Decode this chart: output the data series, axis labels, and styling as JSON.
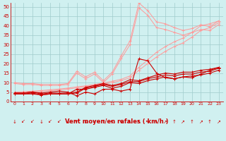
{
  "bg_color": "#d0f0f0",
  "grid_color": "#a0cccc",
  "line_color_dark": "#cc0000",
  "line_color_light": "#ff9999",
  "line_color_light2": "#ffaaaa",
  "xlabel": "Vent moyen/en rafales ( km/h )",
  "ylabel_ticks": [
    0,
    5,
    10,
    15,
    20,
    25,
    30,
    35,
    40,
    45,
    50
  ],
  "xlim": [
    -0.5,
    23.5
  ],
  "ylim": [
    0,
    52
  ],
  "x_ticks": [
    0,
    1,
    2,
    3,
    4,
    5,
    6,
    7,
    8,
    9,
    10,
    11,
    12,
    13,
    14,
    15,
    16,
    17,
    18,
    19,
    20,
    21,
    22,
    23
  ],
  "series_light": [
    [
      5.0,
      5.2,
      5.5,
      5.8,
      6.2,
      6.6,
      7.1,
      7.7,
      8.3,
      9.0,
      9.8,
      10.7,
      11.7,
      13.5,
      18.0,
      22.0,
      26.0,
      29.0,
      31.5,
      33.5,
      36.5,
      40.0,
      41.0,
      42.5
    ],
    [
      4.5,
      4.7,
      5.0,
      5.3,
      5.7,
      6.1,
      6.6,
      7.2,
      7.8,
      8.5,
      9.2,
      10.0,
      11.0,
      12.5,
      16.5,
      20.0,
      23.5,
      26.5,
      29.0,
      31.0,
      34.0,
      37.5,
      39.0,
      41.5
    ],
    [
      10.0,
      9.5,
      9.5,
      9.0,
      9.0,
      9.0,
      9.5,
      16.0,
      13.0,
      15.5,
      11.0,
      15.5,
      24.0,
      32.0,
      52.0,
      48.0,
      42.0,
      41.0,
      39.0,
      37.5,
      38.5,
      40.5,
      39.5,
      42.5
    ],
    [
      9.5,
      9.0,
      9.0,
      8.5,
      8.5,
      8.5,
      9.0,
      15.0,
      12.0,
      14.5,
      10.0,
      14.5,
      22.5,
      30.0,
      49.5,
      45.5,
      39.0,
      38.0,
      36.5,
      35.0,
      36.5,
      38.0,
      37.5,
      40.5
    ]
  ],
  "series_dark": [
    [
      4.5,
      4.5,
      5.0,
      4.0,
      4.5,
      4.5,
      4.5,
      5.0,
      7.5,
      8.5,
      9.5,
      8.5,
      9.5,
      11.5,
      11.0,
      12.5,
      14.0,
      15.0,
      14.5,
      15.5,
      15.5,
      16.5,
      17.0,
      18.0
    ],
    [
      4.0,
      4.0,
      4.5,
      3.5,
      4.0,
      4.0,
      4.0,
      4.5,
      7.0,
      8.0,
      9.0,
      8.0,
      9.0,
      10.5,
      10.5,
      12.0,
      13.0,
      14.0,
      13.5,
      14.5,
      14.5,
      15.5,
      16.0,
      17.5
    ],
    [
      4.0,
      4.0,
      4.0,
      3.5,
      4.0,
      4.0,
      4.0,
      6.5,
      6.5,
      7.5,
      8.5,
      7.0,
      8.0,
      10.0,
      9.5,
      11.0,
      12.0,
      13.0,
      12.0,
      13.0,
      13.5,
      14.0,
      15.0,
      16.5
    ],
    [
      4.5,
      4.5,
      5.0,
      4.5,
      5.0,
      5.5,
      5.0,
      3.0,
      5.0,
      4.0,
      6.5,
      6.5,
      5.5,
      6.5,
      22.5,
      21.5,
      15.0,
      12.5,
      12.0,
      13.0,
      12.5,
      14.5,
      16.5,
      18.0
    ]
  ],
  "wind_symbols": [
    "↓",
    "↙",
    "↙",
    "↓",
    "↙",
    "↙",
    "↓",
    "←",
    "↓",
    "↙",
    "↑",
    "↖",
    "↖",
    "↖",
    "↖",
    "↖",
    "↖",
    "↗",
    "↑",
    "↗",
    "↑",
    "↗",
    "↑",
    "↗"
  ]
}
